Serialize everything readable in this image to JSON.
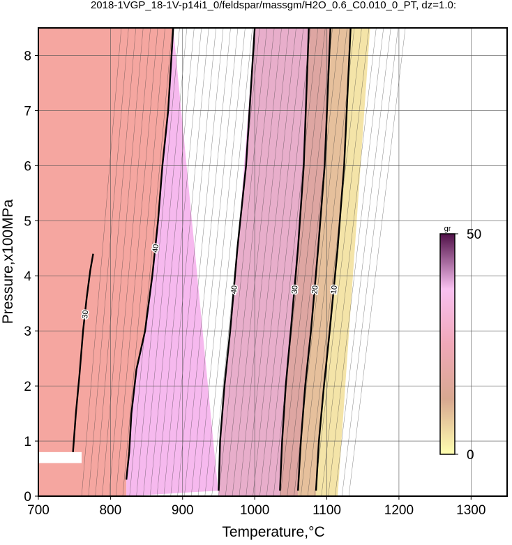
{
  "chart_data": {
    "type": "contour",
    "title": "2018-1VGP_18-1V-p14i1_0/feldspar/massgm/H2O_0.6_C0.010_0_PT, dz=1.0:",
    "xlabel": "Temperature,°C",
    "ylabel": "Pressure,x100MPa",
    "xlim": [
      700,
      1350
    ],
    "ylim": [
      0,
      8.5
    ],
    "xticks": [
      700,
      800,
      900,
      1000,
      1100,
      1200,
      1300
    ],
    "yticks": [
      0,
      1,
      2,
      3,
      4,
      5,
      6,
      7,
      8
    ],
    "grid": true,
    "contours": [
      {
        "level": 30,
        "x": [
          748,
          752,
          757,
          762,
          767,
          772,
          776
        ],
        "y": [
          0.8,
          1.5,
          2.2,
          3.0,
          3.6,
          4.1,
          4.4
        ]
      },
      {
        "level": 40,
        "x": [
          822,
          826,
          829,
          836,
          848,
          858,
          866,
          872,
          880,
          887
        ],
        "y": [
          0.3,
          0.8,
          1.5,
          2.3,
          3.0,
          4.0,
          5.0,
          6.0,
          7.0,
          8.5
        ]
      },
      {
        "level": 40,
        "x": [
          950,
          952,
          958,
          966,
          976,
          988,
          1000
        ],
        "y": [
          0.1,
          1.0,
          2.0,
          3.0,
          4.5,
          6.0,
          8.5
        ]
      },
      {
        "level": 30,
        "x": [
          1035,
          1038,
          1043,
          1050,
          1060,
          1068,
          1075
        ],
        "y": [
          0.1,
          1.0,
          2.0,
          3.0,
          4.5,
          6.0,
          8.5
        ]
      },
      {
        "level": 20,
        "x": [
          1060,
          1064,
          1070,
          1078,
          1088,
          1097,
          1105
        ],
        "y": [
          0.1,
          1.0,
          2.0,
          3.0,
          4.5,
          6.0,
          8.5
        ]
      },
      {
        "level": 10,
        "x": [
          1085,
          1089,
          1096,
          1104,
          1115,
          1124,
          1133
        ],
        "y": [
          0.1,
          1.0,
          2.0,
          3.0,
          4.5,
          6.0,
          8.5
        ]
      }
    ],
    "colorbar": {
      "label": "gr",
      "lim": [
        0,
        50
      ],
      "ticks": [
        0,
        50
      ],
      "colors": [
        "#ffffb0",
        "#d8a890",
        "#f0a8b8",
        "#f8c0f0",
        "#501048"
      ]
    }
  }
}
